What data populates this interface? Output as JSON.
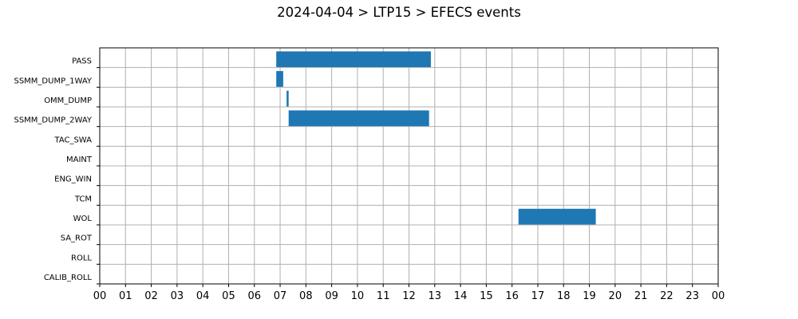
{
  "chart_data": {
    "type": "gantt",
    "title": "2024-04-04 > LTP15 > EFECS events",
    "x_unit": "hour of day",
    "xlim": [
      0,
      24
    ],
    "x_tick_labels": [
      "00",
      "01",
      "02",
      "03",
      "04",
      "05",
      "06",
      "07",
      "08",
      "09",
      "10",
      "11",
      "12",
      "13",
      "14",
      "15",
      "16",
      "17",
      "18",
      "19",
      "20",
      "21",
      "22",
      "23",
      "00"
    ],
    "categories": [
      "PASS",
      "SSMM_DUMP_1WAY",
      "OMM_DUMP",
      "SSMM_DUMP_2WAY",
      "TAC_SWA",
      "MAINT",
      "ENG_WIN",
      "TCM",
      "WOL",
      "SA_ROT",
      "ROLL",
      "CALIB_ROLL"
    ],
    "events": [
      {
        "category": "PASS",
        "start": 6.85,
        "end": 12.85
      },
      {
        "category": "SSMM_DUMP_1WAY",
        "start": 6.85,
        "end": 7.12
      },
      {
        "category": "OMM_DUMP",
        "start": 7.25,
        "end": 7.33
      },
      {
        "category": "SSMM_DUMP_2WAY",
        "start": 7.33,
        "end": 12.78
      },
      {
        "category": "WOL",
        "start": 16.25,
        "end": 19.25
      }
    ],
    "grid": true,
    "bar_color": "#1f77b4"
  }
}
